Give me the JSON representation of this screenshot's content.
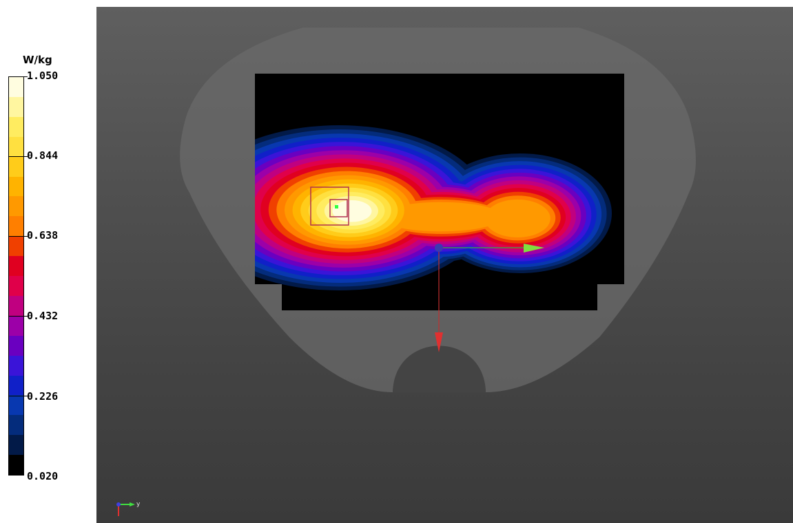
{
  "legend": {
    "unit": "W/kg",
    "ticks": [
      "1.050",
      "0.844",
      "0.638",
      "0.432",
      "0.226",
      "0.020"
    ],
    "colors": [
      "#fffde0",
      "#fff6a0",
      "#ffec60",
      "#ffe040",
      "#ffcc1a",
      "#ffb300",
      "#ff9900",
      "#ff7f00",
      "#f04000",
      "#e00020",
      "#e0004a",
      "#c00080",
      "#9c00a8",
      "#6a00c0",
      "#3a14d8",
      "#1020c8",
      "#0838b0",
      "#042c7c",
      "#021a48",
      "#000000"
    ]
  },
  "viewport": {
    "axis_triad_label": "y"
  }
}
